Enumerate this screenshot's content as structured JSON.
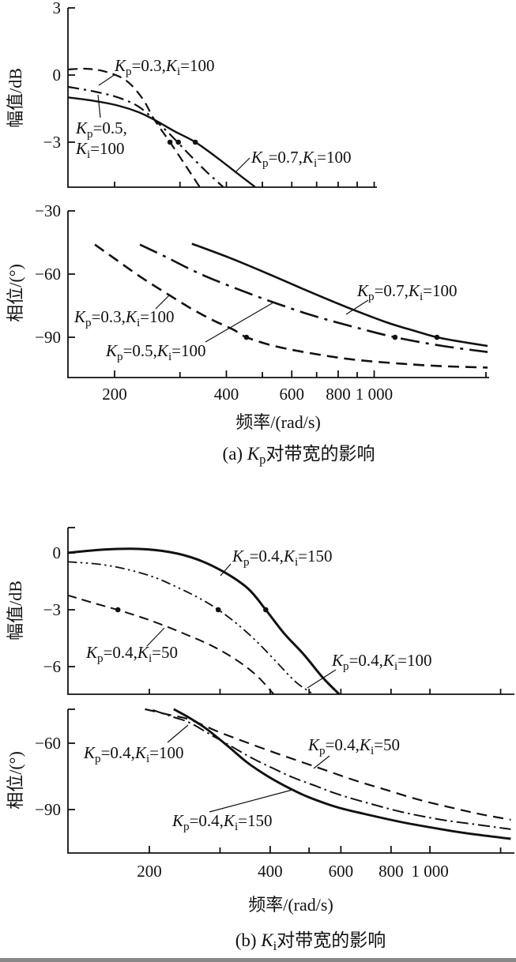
{
  "figure": {
    "ink": "#111111",
    "background": "#ffffff",
    "description": "Bode magnitude and phase plots showing effect of PI controller gains on bandwidth"
  },
  "subfigures": [
    {
      "id": "a",
      "xlabel": "频率/(rad/s)",
      "caption": "(a) K_p对带宽的影响"
    },
    {
      "id": "b",
      "xlabel": "频率/(rad/s)",
      "caption": "(b) K_i对带宽的影响"
    }
  ],
  "chart_data": [
    {
      "id": "a_mag",
      "type": "line",
      "xscale": "log",
      "grid": false,
      "legend": "inline-annotations",
      "ylabel": "幅值/dB",
      "xlabel": "频率/(rad/s)",
      "xlim": [
        150,
        1020
      ],
      "ylim": [
        -5.1,
        3.0
      ],
      "yticks": [
        {
          "v": 3,
          "label": "3"
        },
        {
          "v": 0,
          "label": "0"
        },
        {
          "v": -3,
          "label": "−3"
        }
      ],
      "xticks": [
        {
          "v": 200
        },
        {
          "v": 300
        },
        {
          "v": 400
        },
        {
          "v": 500
        },
        {
          "v": 600
        },
        {
          "v": 700
        },
        {
          "v": 800
        },
        {
          "v": 900
        },
        {
          "v": 1000
        }
      ],
      "series": [
        {
          "name": "K_p=0.3,K_i=100",
          "line": "dashed",
          "dasharray": "12,7",
          "width": 2.2,
          "points": [
            [
              150,
              0.25
            ],
            [
              169,
              0.28
            ],
            [
              190,
              0.14
            ],
            [
              215,
              -0.25
            ],
            [
              238,
              -1.06
            ],
            [
              256,
              -2.0
            ],
            [
              282,
              -3.0
            ],
            [
              311,
              -4.06
            ],
            [
              339,
              -5.0
            ]
          ]
        },
        {
          "name": "K_p=0.5,K_i=100",
          "line": "dashdot",
          "dasharray": "14,6,3,6",
          "width": 2.2,
          "points": [
            [
              150,
              -0.53
            ],
            [
              177,
              -0.74
            ],
            [
              206,
              -1.02
            ],
            [
              232,
              -1.41
            ],
            [
              256,
              -2.0
            ],
            [
              282,
              -2.65
            ],
            [
              311,
              -3.39
            ],
            [
              351,
              -4.27
            ],
            [
              392,
              -5.0
            ]
          ]
        },
        {
          "name": "K_p=0.7,K_i=100",
          "line": "solid",
          "dasharray": "",
          "width": 2.4,
          "points": [
            [
              150,
              -1.0
            ],
            [
              177,
              -1.16
            ],
            [
              206,
              -1.38
            ],
            [
              232,
              -1.66
            ],
            [
              256,
              -2.0
            ],
            [
              289,
              -2.5
            ],
            [
              330,
              -3.0
            ],
            [
              378,
              -3.7
            ],
            [
              427,
              -4.38
            ],
            [
              478,
              -5.0
            ]
          ]
        }
      ],
      "markers": [
        {
          "x": 282,
          "y": -3
        },
        {
          "x": 297,
          "y": -3
        },
        {
          "x": 330,
          "y": -3
        }
      ],
      "annotations": [
        {
          "text": "K_p=0.3,K_i=100",
          "x": 145,
          "y": 90,
          "leader": [
            146,
            94,
            125,
            108
          ]
        },
        {
          "text": "K_p=0.5,\nK_i=100",
          "x": 96,
          "y": 169,
          "lineH": 26,
          "leader": [
            127,
            149,
            124,
            120
          ]
        },
        {
          "text": "K_p=0.7,K_i=100",
          "x": 318,
          "y": 206,
          "leader": [
            316,
            200,
            298,
            218
          ]
        }
      ]
    },
    {
      "id": "a_phase",
      "type": "line",
      "xscale": "log",
      "grid": false,
      "legend": "inline-annotations",
      "ylabel": "相位/(°)",
      "xlabel": "频率/(rad/s)",
      "xlim": [
        150,
        2020
      ],
      "ylim": [
        -109,
        -30
      ],
      "yticks": [
        {
          "v": -30,
          "label": "−30"
        },
        {
          "v": -60,
          "label": "−60"
        },
        {
          "v": -90,
          "label": "−90"
        }
      ],
      "xticks": [
        {
          "v": 200,
          "label": "200"
        },
        {
          "v": 300
        },
        {
          "v": 400,
          "label": "400"
        },
        {
          "v": 500
        },
        {
          "v": 600,
          "label": "600"
        },
        {
          "v": 700
        },
        {
          "v": 800,
          "label": "800"
        },
        {
          "v": 900
        },
        {
          "v": 1000,
          "label": "1 000"
        },
        {
          "v": 2000
        }
      ],
      "series": [
        {
          "name": "K_p=0.3,K_i=100",
          "line": "dashed",
          "dasharray": "14,8",
          "width": 2.6,
          "points": [
            [
              177,
              -46
            ],
            [
              205,
              -54
            ],
            [
              238,
              -62
            ],
            [
              275,
              -69
            ],
            [
              319,
              -76
            ],
            [
              369,
              -82
            ],
            [
              417,
              -86.3
            ],
            [
              453,
              -90
            ],
            [
              546,
              -94.4
            ],
            [
              698,
              -98
            ],
            [
              891,
              -100.7
            ],
            [
              1195,
              -102.6
            ],
            [
              1528,
              -103.7
            ],
            [
              2020,
              -104.4
            ]
          ]
        },
        {
          "name": "K_p=0.5,K_i=100",
          "line": "dashdot",
          "dasharray": "24,8,4,8",
          "width": 2.6,
          "points": [
            [
              234,
              -46
            ],
            [
              276,
              -52
            ],
            [
              334,
              -59.3
            ],
            [
              417,
              -66.3
            ],
            [
              533,
              -73.3
            ],
            [
              681,
              -79.6
            ],
            [
              870,
              -84.8
            ],
            [
              1138,
              -90
            ],
            [
              1528,
              -94.1
            ],
            [
              2020,
              -97
            ]
          ]
        },
        {
          "name": "K_p=0.7,K_i=100",
          "line": "solid",
          "dasharray": "",
          "width": 2.6,
          "points": [
            [
              323,
              -45.6
            ],
            [
              407,
              -52.2
            ],
            [
              520,
              -60
            ],
            [
              664,
              -68.1
            ],
            [
              849,
              -75.9
            ],
            [
              1084,
              -83
            ],
            [
              1287,
              -87
            ],
            [
              1476,
              -90
            ],
            [
              1727,
              -92.2
            ],
            [
              2020,
              -94.1
            ]
          ]
        }
      ],
      "markers": [
        {
          "x": 453,
          "y": -90
        },
        {
          "x": 1138,
          "y": -90
        },
        {
          "x": 1476,
          "y": -90
        }
      ],
      "annotations": [
        {
          "text": "K_p=0.3,K_i=100",
          "x": 94,
          "y": 408,
          "leader": [
            197,
            391,
            215,
            373
          ]
        },
        {
          "text": "K_p=0.5,K_i=100",
          "x": 134,
          "y": 451,
          "leader": [
            260,
            433,
            346,
            383
          ]
        },
        {
          "text": "K_p=0.7,K_i=100",
          "x": 452,
          "y": 375,
          "leader": [
            466,
            380,
            438,
            398
          ]
        }
      ]
    },
    {
      "id": "b_mag",
      "type": "line",
      "xscale": "log",
      "grid": false,
      "legend": "inline-annotations",
      "ylabel": "幅值/dB",
      "xlabel": "频率/(rad/s)",
      "xlim": [
        125,
        1600
      ],
      "ylim": [
        -7.5,
        1.3
      ],
      "yticks": [
        {
          "v": 0,
          "label": "0"
        },
        {
          "v": -3,
          "label": "−3"
        },
        {
          "v": -6,
          "label": "−6"
        }
      ],
      "xticks": [
        {
          "v": 200
        },
        {
          "v": 300
        },
        {
          "v": 400
        },
        {
          "v": 500
        },
        {
          "v": 600
        },
        {
          "v": 800
        },
        {
          "v": 1000
        },
        {
          "v": 1500
        }
      ],
      "series": [
        {
          "name": "K_p=0.4,K_i=50",
          "line": "dashed",
          "dasharray": "12,7",
          "width": 2.0,
          "points": [
            [
              125,
              -2.23
            ],
            [
              146,
              -2.66
            ],
            [
              172,
              -3.09
            ],
            [
              206,
              -3.64
            ],
            [
              246,
              -4.29
            ],
            [
              288,
              -4.93
            ],
            [
              330,
              -5.66
            ],
            [
              370,
              -6.47
            ],
            [
              408,
              -7.45
            ]
          ]
        },
        {
          "name": "K_p=0.4,K_i=100",
          "line": "dashdotdot",
          "dasharray": "12,4.5,2.5,4.5,2.5,4.5",
          "width": 1.8,
          "points": [
            [
              125,
              -0.47
            ],
            [
              150,
              -0.6
            ],
            [
              175,
              -0.86
            ],
            [
              206,
              -1.29
            ],
            [
              241,
              -1.93
            ],
            [
              269,
              -2.44
            ],
            [
              297,
              -3.0
            ],
            [
              330,
              -3.73
            ],
            [
              370,
              -4.67
            ],
            [
              414,
              -5.74
            ],
            [
              463,
              -6.81
            ],
            [
              512,
              -7.45
            ]
          ]
        },
        {
          "name": "K_p=0.4,K_i=150",
          "line": "solid",
          "dasharray": "",
          "width": 3.0,
          "points": [
            [
              125,
              0
            ],
            [
              153,
              0.17
            ],
            [
              188,
              0.21
            ],
            [
              225,
              0.04
            ],
            [
              263,
              -0.34
            ],
            [
              308,
              -1.03
            ],
            [
              353,
              -1.9
            ],
            [
              390,
              -3.0
            ],
            [
              433,
              -4.24
            ],
            [
              485,
              -5.36
            ],
            [
              542,
              -6.6
            ],
            [
              594,
              -7.45
            ]
          ]
        }
      ],
      "markers": [
        {
          "x": 167,
          "y": -3
        },
        {
          "x": 297,
          "y": -3
        },
        {
          "x": 390,
          "y": -3
        }
      ],
      "annotations": [
        {
          "text": "K_p=0.4,K_i=150",
          "x": 294,
          "y": 711,
          "leader": [
            292,
            714,
            279,
            729
          ]
        },
        {
          "text": "K_p=0.4,K_i=50",
          "x": 109,
          "y": 833,
          "leader": [
            186,
            818,
            208,
            795
          ]
        },
        {
          "text": "K_p=0.4,K_i=100",
          "x": 420,
          "y": 843,
          "leader": [
            425,
            848,
            389,
            871
          ]
        }
      ]
    },
    {
      "id": "b_phase",
      "type": "line",
      "xscale": "log",
      "grid": false,
      "legend": "inline-annotations",
      "ylabel": "相位/(°)",
      "xlabel": "频率/(rad/s)",
      "xlim": [
        125,
        1600
      ],
      "ylim": [
        -110,
        -44.5
      ],
      "yticks": [
        {
          "v": -60,
          "label": "−60"
        },
        {
          "v": -90,
          "label": "−90"
        }
      ],
      "xticks": [
        {
          "v": 200,
          "label": "200"
        },
        {
          "v": 300
        },
        {
          "v": 400,
          "label": "400"
        },
        {
          "v": 500
        },
        {
          "v": 600,
          "label": "600"
        },
        {
          "v": 800,
          "label": "800"
        },
        {
          "v": 1000,
          "label": "1 000"
        },
        {
          "v": 1500
        }
      ],
      "series": [
        {
          "name": "K_p=0.4,K_i=50",
          "line": "dashed",
          "dasharray": "13,8",
          "width": 2.2,
          "points": [
            [
              195,
              -44.6
            ],
            [
              222,
              -47
            ],
            [
              252,
              -49.3
            ],
            [
              295,
              -54.6
            ],
            [
              345,
              -59.3
            ],
            [
              405,
              -63.9
            ],
            [
              474,
              -68.2
            ],
            [
              555,
              -72.5
            ],
            [
              650,
              -76.8
            ],
            [
              778,
              -81.1
            ],
            [
              932,
              -85.4
            ],
            [
              1117,
              -88.9
            ],
            [
              1338,
              -92.1
            ],
            [
              1590,
              -94.6
            ]
          ]
        },
        {
          "name": "K_p=0.4,K_i=100",
          "line": "dashdot",
          "dasharray": "15,5,2.5,5",
          "width": 2.0,
          "points": [
            [
              204,
              -45
            ],
            [
              230,
              -48.2
            ],
            [
              252,
              -50.7
            ],
            [
              284,
              -56.1
            ],
            [
              320,
              -61.4
            ],
            [
              361,
              -66.8
            ],
            [
              407,
              -71.4
            ],
            [
              459,
              -75.7
            ],
            [
              519,
              -79.3
            ],
            [
              586,
              -82.9
            ],
            [
              680,
              -86.4
            ],
            [
              852,
              -91.1
            ],
            [
              1068,
              -94.6
            ],
            [
              1309,
              -96.8
            ],
            [
              1590,
              -98.9
            ]
          ]
        },
        {
          "name": "K_p=0.4,K_i=150",
          "line": "solid",
          "dasharray": "",
          "width": 2.9,
          "points": [
            [
              230,
              -44.6
            ],
            [
              250,
              -48.2
            ],
            [
              276,
              -53.2
            ],
            [
              311,
              -60.7
            ],
            [
              350,
              -68.6
            ],
            [
              395,
              -75
            ],
            [
              447,
              -80.4
            ],
            [
              502,
              -84.6
            ],
            [
              586,
              -88.9
            ],
            [
              680,
              -91.8
            ],
            [
              852,
              -95.7
            ],
            [
              1068,
              -98.9
            ],
            [
              1279,
              -101.1
            ],
            [
              1590,
              -103.2
            ]
          ]
        }
      ],
      "markers": [],
      "annotations": [
        {
          "text": "K_p=0.4,K_i=100",
          "x": 106,
          "y": 960,
          "leader": [
            212,
            940,
            238,
            918
          ]
        },
        {
          "text": "K_p=0.4,K_i=150",
          "x": 218,
          "y": 1046,
          "leader": [
            265,
            1028,
            370,
            1000
          ]
        },
        {
          "text": "K_p=0.4,K_i=50",
          "x": 390,
          "y": 950,
          "leader": [
            417,
            957,
            397,
            973
          ]
        }
      ]
    }
  ]
}
